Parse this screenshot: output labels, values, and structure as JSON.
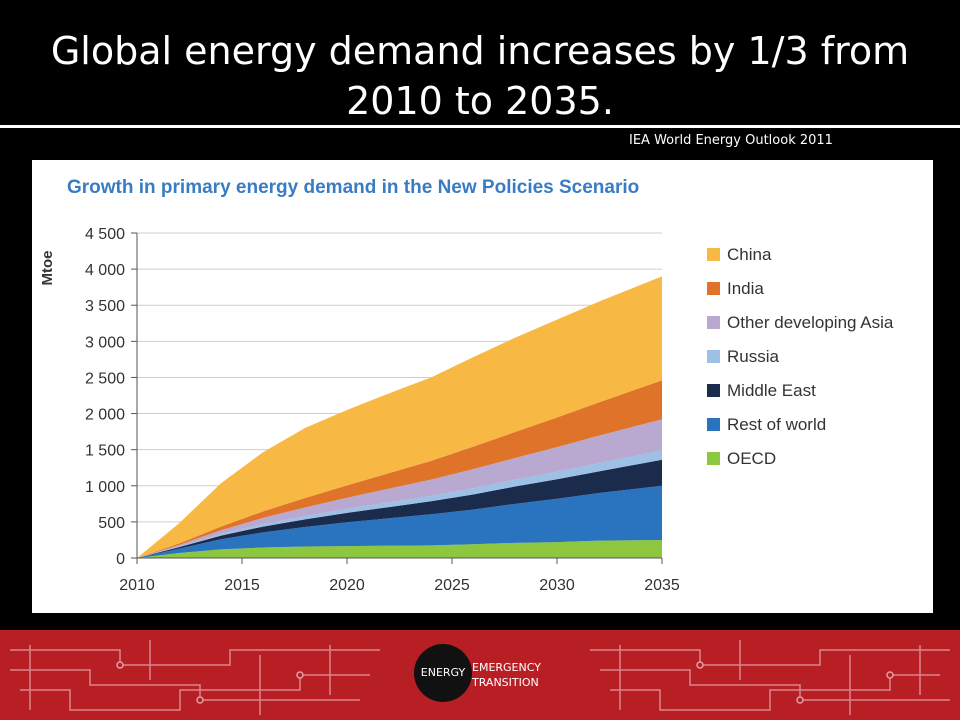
{
  "slide": {
    "title": "Global energy demand increases by 1/3 from 2010 to 2035.",
    "source": "IEA World Energy Outlook 2011"
  },
  "footer": {
    "logo_left": "ENERGY",
    "logo_right_1": "EMERGENCY",
    "logo_right_2": "TRANSITION",
    "color": "#b81f25"
  },
  "chart_data": {
    "type": "area",
    "title": "Growth in primary energy demand in the New Policies Scenario",
    "ylabel": "Mtoe",
    "xlabel": "",
    "x": [
      2010,
      2012,
      2014,
      2016,
      2018,
      2020,
      2022,
      2024,
      2026,
      2028,
      2030,
      2032,
      2035
    ],
    "ylim": [
      0,
      4500
    ],
    "xlim": [
      2010,
      2035
    ],
    "y_ticks": [
      0,
      500,
      1000,
      1500,
      2000,
      2500,
      3000,
      3500,
      4000,
      4500
    ],
    "y_tick_labels": [
      "0",
      "500",
      "1 000",
      "1 500",
      "2 000",
      "2 500",
      "3 000",
      "3 500",
      "4 000",
      "4 500"
    ],
    "x_ticks": [
      2010,
      2015,
      2020,
      2025,
      2030,
      2035
    ],
    "x_tick_labels": [
      "2010",
      "2015",
      "2020",
      "2025",
      "2030",
      "2035"
    ],
    "grid": "horizontal",
    "legend_position": "right",
    "stacked": true,
    "series": [
      {
        "name": "OECD",
        "color": "#8dc63f",
        "values": [
          0,
          70,
          120,
          145,
          160,
          165,
          170,
          175,
          190,
          210,
          220,
          240,
          250
        ]
      },
      {
        "name": "Rest of world",
        "color": "#2a74bf",
        "values": [
          0,
          60,
          140,
          210,
          270,
          330,
          380,
          430,
          480,
          540,
          600,
          660,
          750
        ]
      },
      {
        "name": "Middle East",
        "color": "#1a2b4c",
        "values": [
          0,
          20,
          50,
          80,
          105,
          130,
          155,
          180,
          210,
          240,
          270,
          300,
          360
        ]
      },
      {
        "name": "Russia",
        "color": "#9cc0e6",
        "values": [
          0,
          10,
          25,
          35,
          45,
          55,
          65,
          75,
          85,
          95,
          105,
          115,
          130
        ]
      },
      {
        "name": "Other developing Asia",
        "color": "#b9a8cf",
        "values": [
          0,
          20,
          50,
          85,
          120,
          155,
          190,
          225,
          265,
          300,
          340,
          380,
          430
        ]
      },
      {
        "name": "India",
        "color": "#e0732a",
        "values": [
          0,
          20,
          50,
          90,
          130,
          170,
          215,
          260,
          310,
          360,
          410,
          460,
          540
        ]
      },
      {
        "name": "China",
        "color": "#f7b944",
        "values": [
          0,
          280,
          600,
          820,
          970,
          1045,
          1105,
          1155,
          1240,
          1305,
          1355,
          1395,
          1440
        ]
      }
    ],
    "legend_order": [
      "China",
      "India",
      "Other developing Asia",
      "Russia",
      "Middle East",
      "Rest of world",
      "OECD"
    ]
  }
}
